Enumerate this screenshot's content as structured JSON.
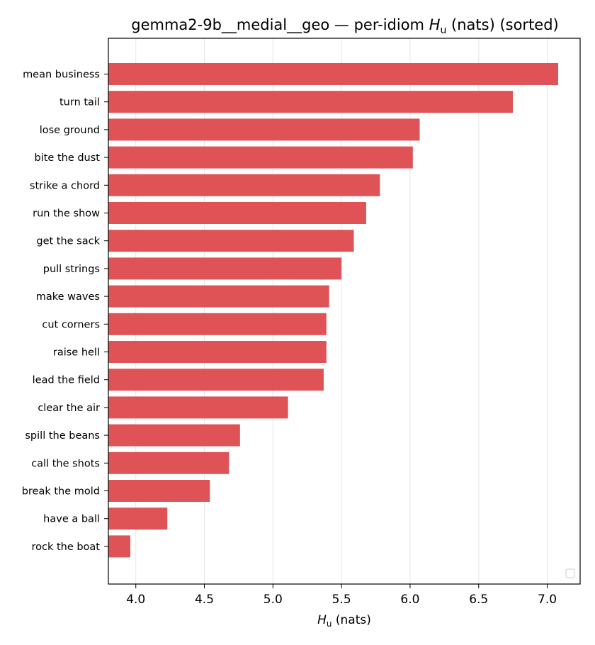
{
  "chart_data": {
    "type": "bar",
    "orientation": "horizontal",
    "title": {
      "prefix": "gemma2-9b__medial__geo — per-idiom ",
      "var": "H",
      "sub": "u",
      "suffix": " (nats) (sorted)"
    },
    "xlabel": {
      "var": "H",
      "sub": "u",
      "suffix": " (nats)"
    },
    "xlim": [
      3.8,
      7.24
    ],
    "xticks": [
      4.0,
      4.5,
      5.0,
      5.5,
      6.0,
      6.5,
      7.0
    ],
    "xtick_labels": [
      "4.0",
      "4.5",
      "5.0",
      "5.5",
      "6.0",
      "6.5",
      "7.0"
    ],
    "grid": "x",
    "legend": "lower-right (empty)",
    "bar_color": "#df5357",
    "categories": [
      "mean business",
      "turn tail",
      "lose ground",
      "bite the dust",
      "strike a chord",
      "run the show",
      "get the sack",
      "pull strings",
      "make waves",
      "cut corners",
      "raise hell",
      "lead the field",
      "clear the air",
      "spill the beans",
      "call the shots",
      "break the mold",
      "have a ball",
      "rock the boat"
    ],
    "values": [
      7.08,
      6.75,
      6.07,
      6.02,
      5.78,
      5.68,
      5.59,
      5.5,
      5.41,
      5.39,
      5.39,
      5.37,
      5.11,
      4.76,
      4.68,
      4.54,
      4.23,
      3.96
    ]
  }
}
